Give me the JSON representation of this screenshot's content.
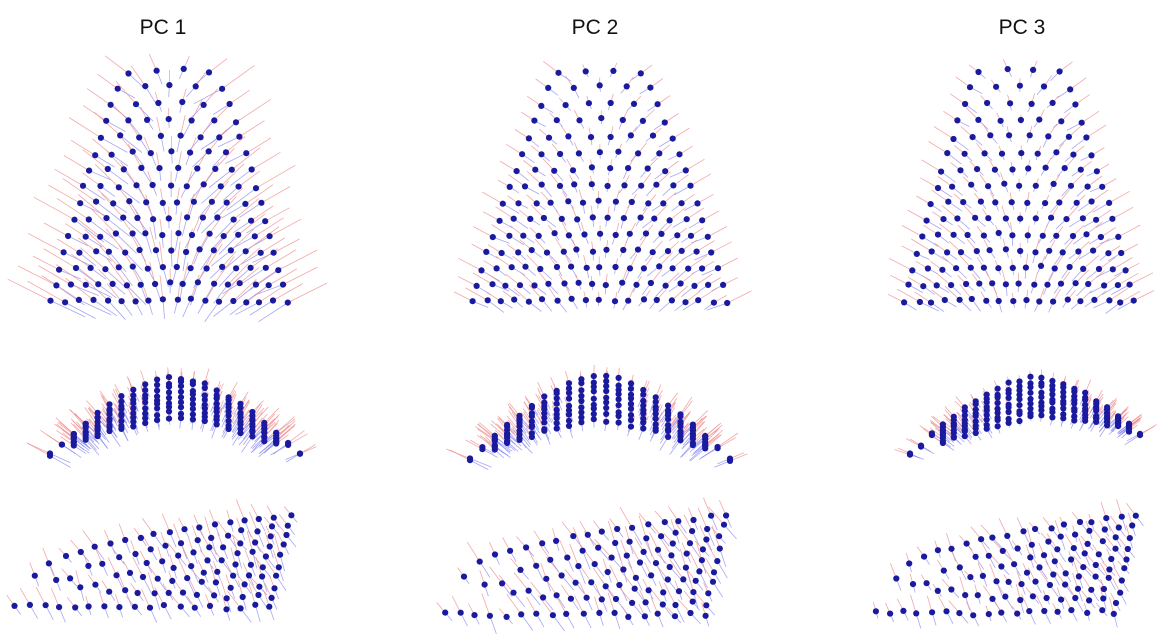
{
  "figure": {
    "columns": [
      {
        "title": "PC 1",
        "key": "pc1"
      },
      {
        "title": "PC 2",
        "key": "pc2"
      },
      {
        "title": "PC 3",
        "key": "pc3"
      }
    ],
    "views": [
      "front",
      "side-arch",
      "oblique"
    ],
    "colors": {
      "point": "#1a1a9e",
      "vector_positive": "#f08a8a",
      "vector_negative": "#8a8af0",
      "background": "#ffffff"
    }
  }
}
